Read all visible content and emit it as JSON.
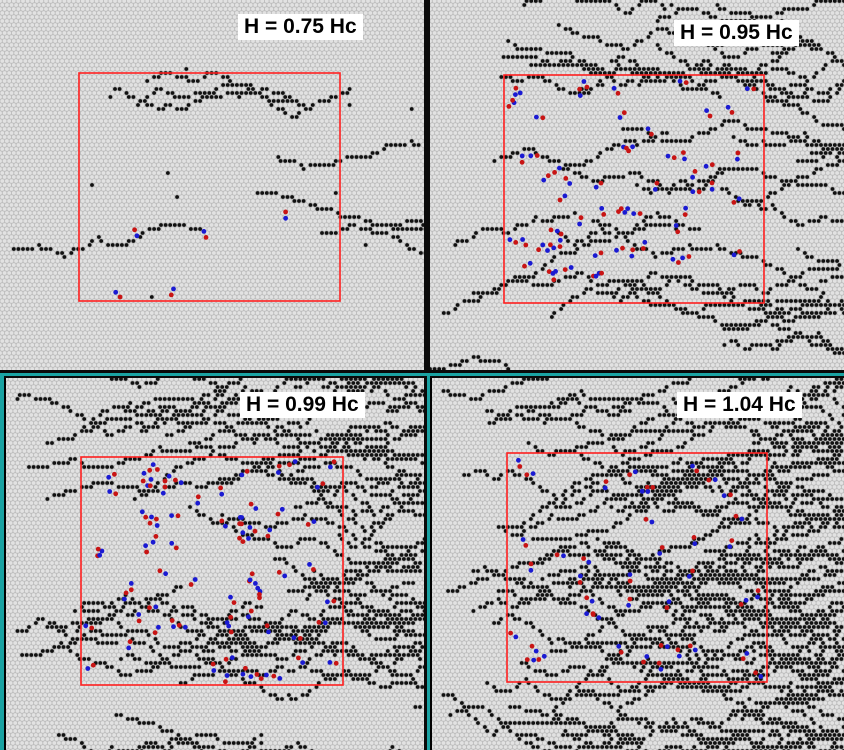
{
  "colors": {
    "lattice_bg": "#bdbdbd",
    "site": "#e2e2e2",
    "flipped_site": "#111111",
    "box": "#ff2020",
    "red_spin": "#c81414",
    "blue_spin": "#1a1ad2",
    "separator_dark": "#0a0a0a",
    "separator_teal": "#1aa3a3"
  },
  "panels": [
    {
      "label": "H = 0.75 Hc",
      "seed": 11,
      "density": 0.0,
      "rows": 10,
      "pairs": 5
    },
    {
      "label": "H = 0.95 Hc",
      "seed": 23,
      "density": 0.45,
      "rows": 42,
      "pairs": 58
    },
    {
      "label": "H = 0.99 Hc",
      "seed": 37,
      "density": 0.75,
      "rows": 70,
      "pairs": 70
    },
    {
      "label": "H = 1.04 Hc",
      "seed": 53,
      "density": 1.0,
      "rows": 95,
      "pairs": 40
    }
  ]
}
